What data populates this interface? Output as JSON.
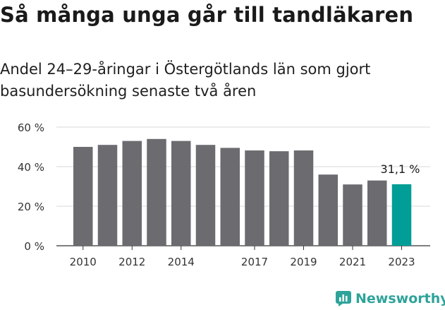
{
  "title": "Så många unga går till tandläkaren",
  "subtitle": "Andel 24–29-åringar i Östergötlands län som gjort basundersökning senaste två åren",
  "brand": {
    "name": "Newsworthy",
    "icon": "newsworthy-logo-icon",
    "color": "#2ea39a"
  },
  "chart_data": {
    "type": "bar",
    "categories": [
      "2010",
      "2011",
      "2012",
      "2013",
      "2014",
      "2015",
      "2016",
      "2017",
      "2018",
      "2019",
      "2020",
      "2021",
      "2022",
      "2023"
    ],
    "values": [
      50,
      51,
      53,
      54,
      53,
      51,
      49.5,
      48.2,
      47.8,
      48.2,
      36,
      31,
      33,
      31.1
    ],
    "x_tick_labels": [
      "2010",
      "2012",
      "2014",
      "2017",
      "2019",
      "2021",
      "2023"
    ],
    "y_ticks": [
      0,
      20,
      40,
      60
    ],
    "y_tick_labels": [
      "0 %",
      "20 %",
      "40 %",
      "60 %"
    ],
    "ylim": [
      0,
      60
    ],
    "grid": true,
    "bar_color": "#6c6b70",
    "highlight_index": 13,
    "highlight_color": "#009e96",
    "annotation": "31,1 %"
  }
}
